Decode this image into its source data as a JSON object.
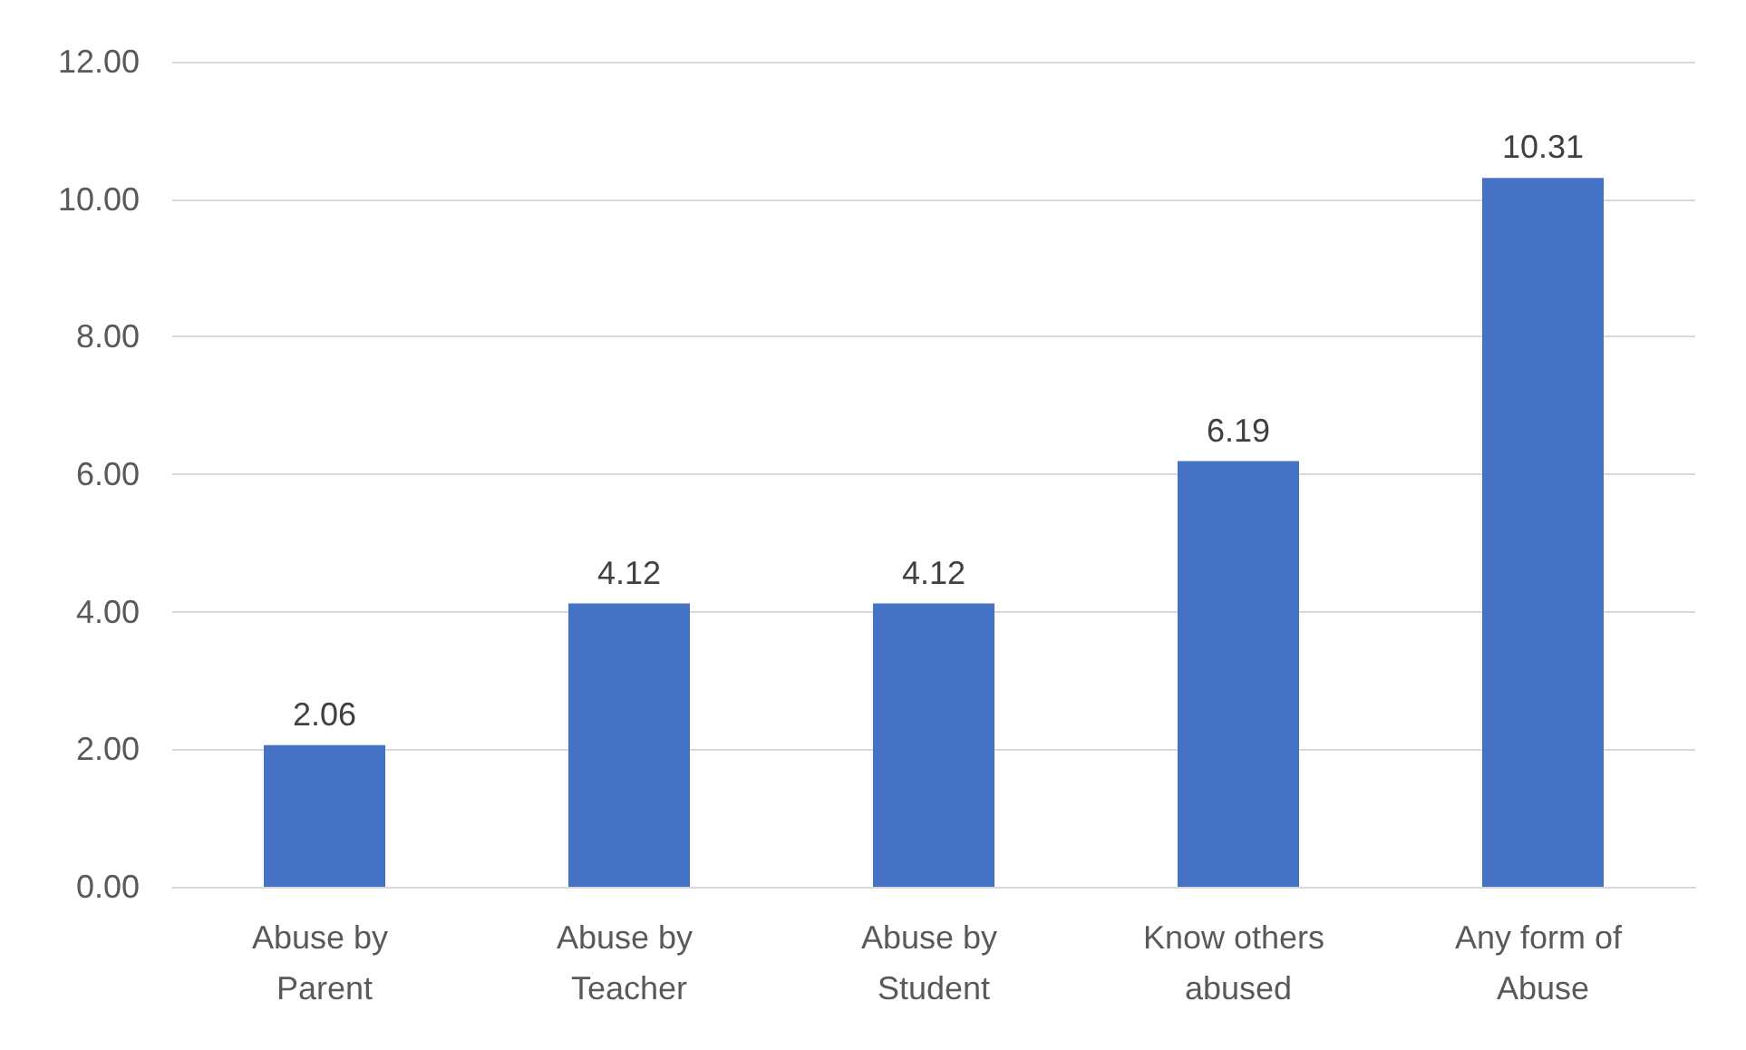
{
  "chart_data": {
    "type": "bar",
    "categories": [
      "Abuse by Parent",
      "Abuse by Teacher",
      "Abuse by Student",
      "Know others abused",
      "Any form of Abuse"
    ],
    "values": [
      2.06,
      4.12,
      4.12,
      6.19,
      10.31
    ],
    "color": "#4472c4",
    "ylim": [
      0,
      12
    ],
    "yticks": [
      {
        "value": 0,
        "label": "0.00"
      },
      {
        "value": 2,
        "label": "2.00"
      },
      {
        "value": 4,
        "label": "4.00"
      },
      {
        "value": 6,
        "label": "6.00"
      },
      {
        "value": 8,
        "label": "8.00"
      },
      {
        "value": 10,
        "label": "10.00"
      },
      {
        "value": 12,
        "label": "12.00"
      }
    ],
    "grid": true,
    "data_labels": true
  }
}
